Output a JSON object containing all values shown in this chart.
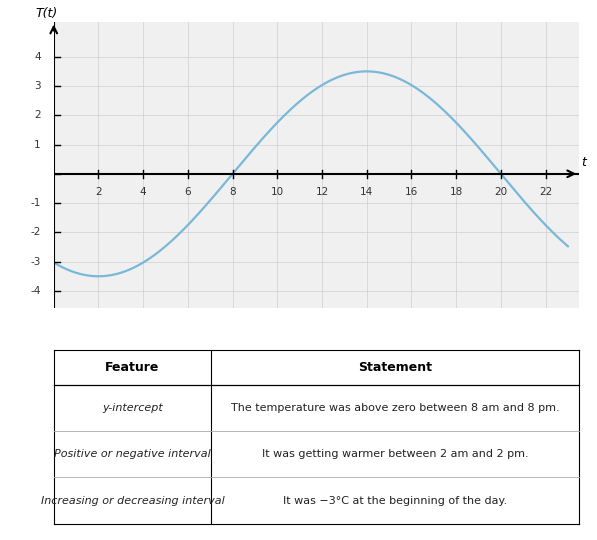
{
  "title_label": "T(t)",
  "t_label": "t",
  "amplitude": 3.5,
  "period": 24,
  "phase_shift": 8,
  "t_start": 0,
  "t_end": 23,
  "x_ticks": [
    2,
    4,
    6,
    8,
    10,
    12,
    14,
    16,
    18,
    20,
    22
  ],
  "y_ticks": [
    -4,
    -3,
    -2,
    -1,
    1,
    2,
    3,
    4
  ],
  "xlim": [
    0,
    23.5
  ],
  "ylim": [
    -4.6,
    5.2
  ],
  "curve_color": "#7ab8d8",
  "curve_linewidth": 1.6,
  "grid_color": "#d0d0d0",
  "bg_color": "#f0f0f0",
  "table_header_feature": "Feature",
  "table_header_statement": "Statement",
  "table_rows": [
    {
      "feature": "y-intercept",
      "statement": "The temperature was above zero between 8 am and 8 pm."
    },
    {
      "feature": "Positive or negative interval",
      "statement": "It was getting warmer between 2 am and 2 pm."
    },
    {
      "feature": "Increasing or decreasing interval",
      "statement": "It was −3°C at the beginning of the day."
    }
  ]
}
